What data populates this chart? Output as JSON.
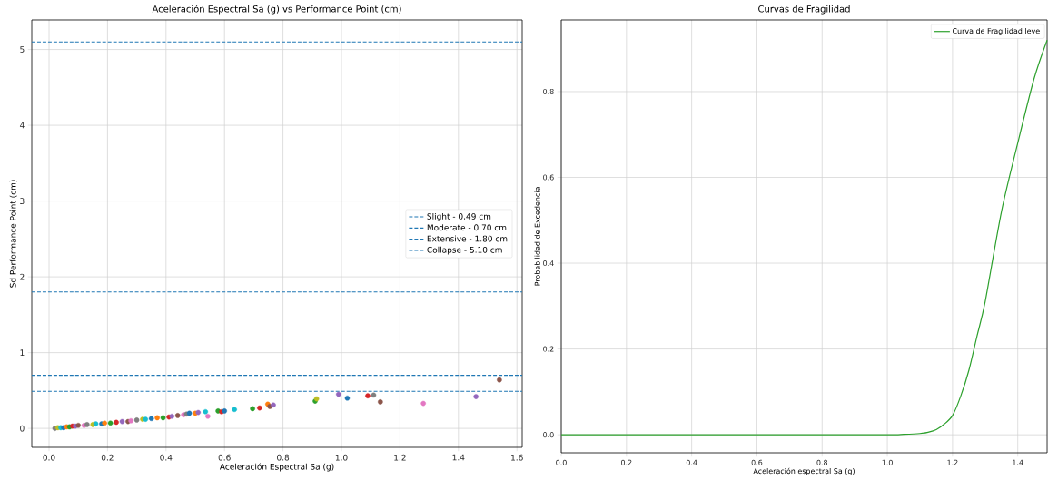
{
  "chart_data": [
    {
      "type": "scatter",
      "title": "Aceleración Espectral Sa (g) vs Performance Point (cm)",
      "xlabel": "Aceleración Espectral Sa (g)",
      "ylabel": "Sd Performance Point (cm)",
      "x": [
        0.02,
        0.03,
        0.04,
        0.05,
        0.06,
        0.07,
        0.08,
        0.09,
        0.1,
        0.12,
        0.13,
        0.15,
        0.16,
        0.18,
        0.19,
        0.21,
        0.23,
        0.25,
        0.27,
        0.28,
        0.3,
        0.32,
        0.33,
        0.35,
        0.37,
        0.39,
        0.41,
        0.42,
        0.44,
        0.46,
        0.47,
        0.48,
        0.5,
        0.51,
        0.535,
        0.543,
        0.578,
        0.59,
        0.6,
        0.634,
        0.696,
        0.72,
        0.748,
        0.755,
        0.767,
        0.91,
        0.915,
        0.99,
        1.02,
        1.09,
        1.11,
        1.133,
        1.28,
        1.46,
        1.54
      ],
      "values": [
        0.0,
        0.01,
        0.01,
        0.01,
        0.02,
        0.02,
        0.03,
        0.03,
        0.04,
        0.04,
        0.05,
        0.05,
        0.06,
        0.06,
        0.07,
        0.07,
        0.08,
        0.09,
        0.09,
        0.1,
        0.11,
        0.12,
        0.12,
        0.13,
        0.14,
        0.14,
        0.15,
        0.16,
        0.17,
        0.18,
        0.19,
        0.2,
        0.2,
        0.21,
        0.22,
        0.16,
        0.23,
        0.22,
        0.23,
        0.25,
        0.26,
        0.27,
        0.32,
        0.29,
        0.31,
        0.36,
        0.39,
        0.45,
        0.4,
        0.43,
        0.44,
        0.35,
        0.33,
        0.42,
        0.64
      ],
      "colors": [
        "#7f7f7f",
        "#bcbd22",
        "#17becf",
        "#1f77b4",
        "#ff7f0e",
        "#2ca02c",
        "#d62728",
        "#9467bd",
        "#8c564b",
        "#e377c2",
        "#7f7f7f",
        "#bcbd22",
        "#17becf",
        "#1f77b4",
        "#ff7f0e",
        "#2ca02c",
        "#d62728",
        "#9467bd",
        "#8c564b",
        "#e377c2",
        "#7f7f7f",
        "#bcbd22",
        "#17becf",
        "#1f77b4",
        "#ff7f0e",
        "#2ca02c",
        "#d62728",
        "#9467bd",
        "#8c564b",
        "#e377c2",
        "#7f7f7f",
        "#1f77b4",
        "#ff7f0e",
        "#9467bd",
        "#17becf",
        "#e377c2",
        "#2ca02c",
        "#d62728",
        "#1f77b4",
        "#17becf",
        "#2ca02c",
        "#d62728",
        "#ff7f0e",
        "#8c564b",
        "#9467bd",
        "#2ca02c",
        "#bcbd22",
        "#9467bd",
        "#1f77b4",
        "#d62728",
        "#7f7f7f",
        "#8c564b",
        "#e377c2",
        "#9467bd",
        "#8c564b"
      ],
      "marker": "circle",
      "xlim": [
        -0.059,
        1.618
      ],
      "ylim": [
        -0.25,
        5.39
      ],
      "xticks": [
        {
          "value": 0,
          "label": "0.0"
        },
        {
          "value": 0.2,
          "label": "0.2"
        },
        {
          "value": 0.4,
          "label": "0.4"
        },
        {
          "value": 0.6,
          "label": "0.6"
        },
        {
          "value": 0.8,
          "label": "0.8"
        },
        {
          "value": 1.0,
          "label": "1.0"
        },
        {
          "value": 1.2,
          "label": "1.2"
        },
        {
          "value": 1.4,
          "label": "1.4"
        },
        {
          "value": 1.6,
          "label": "1.6"
        }
      ],
      "yticks": [
        0,
        1,
        2,
        3,
        4,
        5
      ],
      "grid": true,
      "legend": "right",
      "ref_lines": [
        {
          "axis": "y",
          "value": 0.49,
          "label": "Slight - 0.49 cm",
          "color": "#1f77b4",
          "line_style": "dashed"
        },
        {
          "axis": "y",
          "value": 0.7,
          "label": "Moderate - 0.70 cm",
          "color": "#1f77b4",
          "line_style": "dashed"
        },
        {
          "axis": "y",
          "value": 1.8,
          "label": "Extensive - 1.80 cm",
          "color": "#1f77b4",
          "line_style": "dashed"
        },
        {
          "axis": "y",
          "value": 5.1,
          "label": "Collapse - 5.10 cm",
          "color": "#1f77b4",
          "line_style": "dashed"
        }
      ]
    },
    {
      "type": "line",
      "title": "Curvas de Fragilidad",
      "xlabel": "Aceleración espectral Sa (g)",
      "ylabel": "Probabilidad de Excedencia",
      "series": [
        {
          "name": "Curva de Fragilidad leve",
          "color": "#2ca02c",
          "x": [
            0,
            0.2,
            0.4,
            0.6,
            0.8,
            1.0,
            1.05,
            1.1,
            1.125,
            1.15,
            1.175,
            1.2,
            1.225,
            1.25,
            1.275,
            1.3,
            1.35,
            1.4,
            1.45,
            1.49
          ],
          "values": [
            0,
            0,
            0,
            0,
            0,
            0,
            0.001,
            0.003,
            0.006,
            0.012,
            0.025,
            0.045,
            0.09,
            0.15,
            0.23,
            0.31,
            0.52,
            0.68,
            0.83,
            0.92
          ]
        }
      ],
      "xlim": [
        0,
        1.49
      ],
      "ylim": [
        -0.042,
        0.967
      ],
      "xticks": [
        {
          "value": 0,
          "label": "0.0"
        },
        {
          "value": 0.2,
          "label": "0.2"
        },
        {
          "value": 0.4,
          "label": "0.4"
        },
        {
          "value": 0.6,
          "label": "0.6"
        },
        {
          "value": 0.8,
          "label": "0.8"
        },
        {
          "value": 1.0,
          "label": "1.0"
        },
        {
          "value": 1.2,
          "label": "1.2"
        },
        {
          "value": 1.4,
          "label": "1.4"
        }
      ],
      "yticks": [
        {
          "value": 0,
          "label": "0.0"
        },
        {
          "value": 0.2,
          "label": "0.2"
        },
        {
          "value": 0.4,
          "label": "0.4"
        },
        {
          "value": 0.6,
          "label": "0.6"
        },
        {
          "value": 0.8,
          "label": "0.8"
        }
      ],
      "grid": true,
      "legend": "top right"
    }
  ]
}
